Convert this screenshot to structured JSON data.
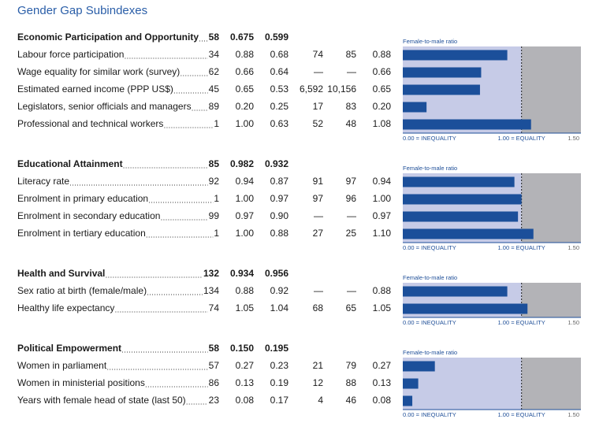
{
  "title": "Gender Gap Subindexes",
  "ratio_caption": "Female-to-male ratio",
  "scale": {
    "lim": [
      0,
      1.5
    ],
    "ticks": [
      {
        "value": 0,
        "label": "0.00 = INEQUALITY"
      },
      {
        "value": 1,
        "label": "1.00 = EQUALITY"
      },
      {
        "value": 1.5,
        "label": "1.50"
      }
    ]
  },
  "sections": [
    {
      "name": "Economic Participation and Opportunity",
      "rank": "58",
      "score": "0.675",
      "average": "0.599",
      "rows": [
        {
          "label": "Labour force participation",
          "rank": "34",
          "score": "0.88",
          "average": "0.68",
          "female": "74",
          "male": "85",
          "ratio": 0.88,
          "ratio_label": "0.88"
        },
        {
          "label": "Wage equality for similar work (survey)",
          "rank": "62",
          "score": "0.66",
          "average": "0.64",
          "female": "—",
          "male": "—",
          "ratio": 0.66,
          "ratio_label": "0.66"
        },
        {
          "label": "Estimated earned income (PPP US$)",
          "rank": "45",
          "score": "0.65",
          "average": "0.53",
          "female": "6,592",
          "male": "10,156",
          "ratio": 0.65,
          "ratio_label": "0.65"
        },
        {
          "label": "Legislators, senior officials and managers",
          "rank": "89",
          "score": "0.20",
          "average": "0.25",
          "female": "17",
          "male": "83",
          "ratio": 0.2,
          "ratio_label": "0.20"
        },
        {
          "label": "Professional and technical workers",
          "rank": "1",
          "score": "1.00",
          "average": "0.63",
          "female": "52",
          "male": "48",
          "ratio": 1.08,
          "ratio_label": "1.08"
        }
      ]
    },
    {
      "name": "Educational Attainment",
      "rank": "85",
      "score": "0.982",
      "average": "0.932",
      "rows": [
        {
          "label": "Literacy rate",
          "rank": "92",
          "score": "0.94",
          "average": "0.87",
          "female": "91",
          "male": "97",
          "ratio": 0.94,
          "ratio_label": "0.94"
        },
        {
          "label": "Enrolment in primary education",
          "rank": "1",
          "score": "1.00",
          "average": "0.97",
          "female": "97",
          "male": "96",
          "ratio": 1,
          "ratio_label": "1.00"
        },
        {
          "label": "Enrolment in secondary education",
          "rank": "99",
          "score": "0.97",
          "average": "0.90",
          "female": "—",
          "male": "—",
          "ratio": 0.97,
          "ratio_label": "0.97"
        },
        {
          "label": "Enrolment in tertiary education",
          "rank": "1",
          "score": "1.00",
          "average": "0.88",
          "female": "27",
          "male": "25",
          "ratio": 1.1,
          "ratio_label": "1.10"
        }
      ]
    },
    {
      "name": "Health and Survival",
      "rank": "132",
      "score": "0.934",
      "average": "0.956",
      "rows": [
        {
          "label": "Sex ratio at birth (female/male)",
          "rank": "134",
          "score": "0.88",
          "average": "0.92",
          "female": "—",
          "male": "—",
          "ratio": 0.88,
          "ratio_label": "0.88"
        },
        {
          "label": "Healthy life expectancy",
          "rank": "74",
          "score": "1.05",
          "average": "1.04",
          "female": "68",
          "male": "65",
          "ratio": 1.05,
          "ratio_label": "1.05"
        }
      ]
    },
    {
      "name": "Political Empowerment",
      "rank": "58",
      "score": "0.150",
      "average": "0.195",
      "rows": [
        {
          "label": "Women in parliament",
          "rank": "57",
          "score": "0.27",
          "average": "0.23",
          "female": "21",
          "male": "79",
          "ratio": 0.27,
          "ratio_label": "0.27"
        },
        {
          "label": "Women in ministerial positions",
          "rank": "86",
          "score": "0.13",
          "average": "0.19",
          "female": "12",
          "male": "88",
          "ratio": 0.13,
          "ratio_label": "0.13"
        },
        {
          "label": "Years with female head of state (last 50)",
          "rank": "23",
          "score": "0.08",
          "average": "0.17",
          "female": "4",
          "male": "46",
          "ratio": 0.08,
          "ratio_label": "0.08"
        }
      ]
    }
  ]
}
